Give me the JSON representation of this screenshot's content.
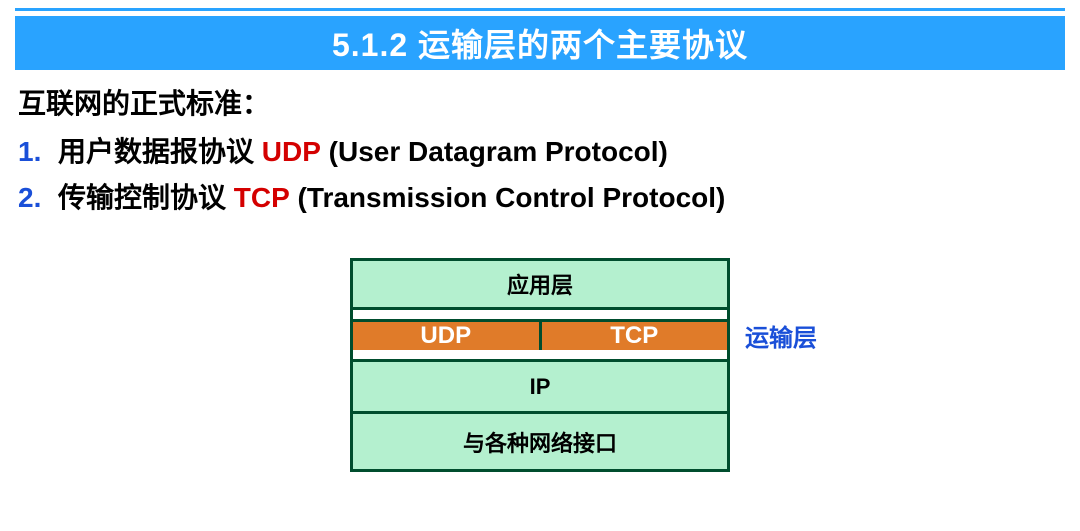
{
  "title": "5.1.2   运输层的两个主要协议",
  "subtitle": "互联网的正式标准：",
  "items": [
    {
      "num": "1.",
      "pre": "用户数据报协议 ",
      "acronym": "UDP",
      "post": " (User Datagram Protocol)"
    },
    {
      "num": "2.",
      "pre": "传输控制协议 ",
      "acronym": "TCP",
      "post": " (Transmission Control Protocol)"
    }
  ],
  "diagram": {
    "layers": {
      "application": "应用层",
      "udp": "UDP",
      "tcp": "TCP",
      "ip": "IP",
      "network": "与各种网络接口"
    },
    "side_label": "运输层",
    "colors": {
      "title_bar_bg": "#29a3ff",
      "title_bar_fg": "#ffffff",
      "layer_bg": "#b4f0cf",
      "transport_bg": "#e07b29",
      "border": "#004d2e",
      "num_color": "#1a4fd8",
      "acronym_color": "#d40000",
      "side_label_color": "#1a4fd8"
    }
  }
}
